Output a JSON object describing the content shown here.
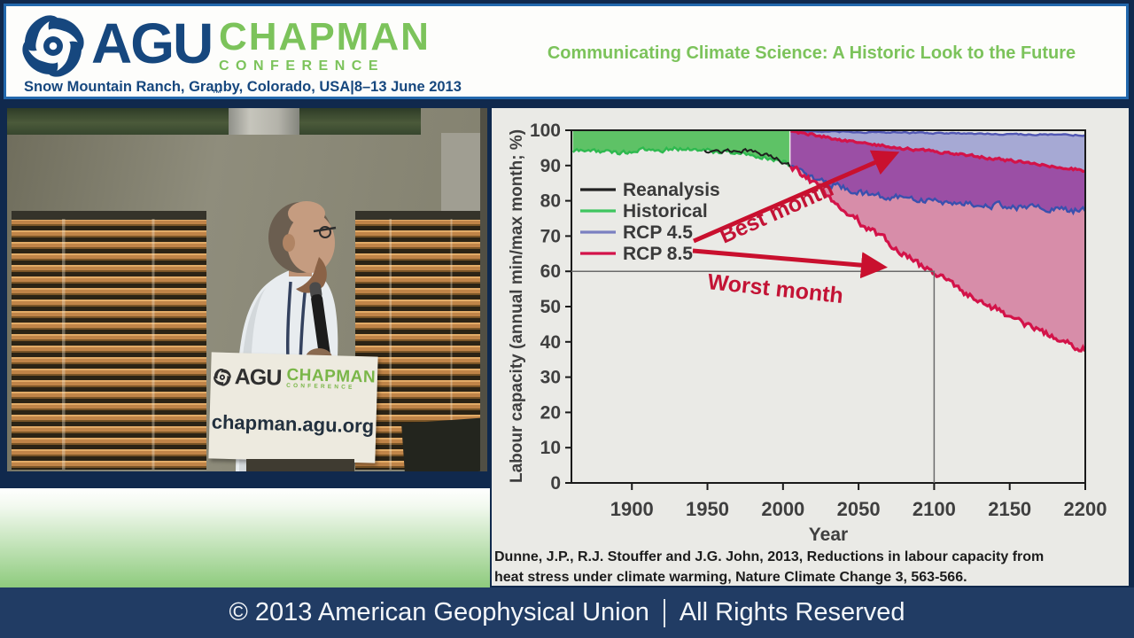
{
  "header": {
    "agu": "AGU",
    "tm": "™",
    "chapman": "CHAPMAN",
    "conference": "CONFERENCE",
    "location": "Snow Mountain Ranch, Granby, Colorado, USA|8–13 June 2013",
    "title": "Communicating Climate Science: A Historic Look to the Future"
  },
  "video": {
    "podium": {
      "agu": "AGU",
      "chapman": "CHAPMAN",
      "conference": "CONFERENCE",
      "url": "chapman.agu.org"
    }
  },
  "slide": {
    "citation_line1": "Dunne, J.P., R.J. Stouffer and J.G. John, 2013, Reductions in labour capacity from",
    "citation_line2": "heat stress under climate warming, Nature Climate Change 3, 563-566."
  },
  "footer": {
    "copyright": "© 2013 American Geophysical Union",
    "rights": "All Rights Reserved"
  },
  "chart_data": {
    "type": "area",
    "title": "",
    "xlabel": "Year",
    "ylabel": "Labour capacity (annual min/max month; %)",
    "xlim": [
      1860,
      2200
    ],
    "ylim": [
      0,
      100
    ],
    "x_ticks": [
      1900,
      1950,
      2000,
      2050,
      2100,
      2150,
      2200
    ],
    "y_ticks": [
      0,
      10,
      20,
      30,
      40,
      50,
      60,
      70,
      80,
      90,
      100
    ],
    "grid": false,
    "legend_position": "upper-left-inside",
    "legend": [
      {
        "label": "Reanalysis",
        "color": "#222222"
      },
      {
        "label": "Historical",
        "color": "#3fc55f"
      },
      {
        "label": "RCP 4.5",
        "color": "#7b80c1"
      },
      {
        "label": "RCP 8.5",
        "color": "#d31349"
      }
    ],
    "series": [
      {
        "name": "historical-top",
        "color": "none",
        "width": 0,
        "amp": 0,
        "anchors": [
          [
            1861,
            100
          ],
          [
            2005,
            100
          ]
        ]
      },
      {
        "name": "historical",
        "color": "#2eb94f",
        "width": 2.4,
        "amp": 1.1,
        "anchors": [
          [
            1861,
            94
          ],
          [
            1875,
            94.3
          ],
          [
            1890,
            93.6
          ],
          [
            1905,
            94.2
          ],
          [
            1920,
            94.5
          ],
          [
            1935,
            94.8
          ],
          [
            1950,
            94.2
          ],
          [
            1965,
            93.8
          ],
          [
            1980,
            93.2
          ],
          [
            1990,
            92.3
          ],
          [
            2000,
            91
          ],
          [
            2005,
            89.6
          ]
        ]
      },
      {
        "name": "reanalysis",
        "color": "#1e1e1e",
        "width": 2,
        "amp": 1.0,
        "anchors": [
          [
            1948,
            94.4
          ],
          [
            1960,
            94
          ],
          [
            1972,
            94.4
          ],
          [
            1984,
            93.4
          ],
          [
            1996,
            92.2
          ],
          [
            2005,
            89.8
          ]
        ]
      },
      {
        "name": "rcp45-best",
        "color": "#5157b3",
        "width": 2.4,
        "amp": 0.3,
        "anchors": [
          [
            2005,
            99.7
          ],
          [
            2100,
            99.2
          ],
          [
            2200,
            98.6
          ]
        ]
      },
      {
        "name": "rcp85-best",
        "color": "#d31349",
        "width": 3.2,
        "amp": 0.6,
        "anchors": [
          [
            2005,
            99.7
          ],
          [
            2020,
            98.8
          ],
          [
            2040,
            97.1
          ],
          [
            2060,
            95.9
          ],
          [
            2080,
            94.8
          ],
          [
            2100,
            94
          ],
          [
            2125,
            92.8
          ],
          [
            2150,
            91.4
          ],
          [
            2175,
            90
          ],
          [
            2200,
            88.5
          ]
        ]
      },
      {
        "name": "rcp45-worst",
        "color": "#3a50ae",
        "width": 2.4,
        "amp": 1.6,
        "anchors": [
          [
            2005,
            89.5
          ],
          [
            2015,
            87
          ],
          [
            2030,
            85
          ],
          [
            2050,
            82.5
          ],
          [
            2070,
            81
          ],
          [
            2100,
            80
          ],
          [
            2130,
            79
          ],
          [
            2160,
            78
          ],
          [
            2200,
            77
          ]
        ]
      },
      {
        "name": "rcp85-worst",
        "color": "#d31349",
        "width": 3.2,
        "amp": 1.6,
        "anchors": [
          [
            2005,
            89.5
          ],
          [
            2015,
            87
          ],
          [
            2030,
            81
          ],
          [
            2045,
            76
          ],
          [
            2060,
            71
          ],
          [
            2075,
            66.5
          ],
          [
            2090,
            62
          ],
          [
            2100,
            59.5
          ],
          [
            2120,
            54
          ],
          [
            2140,
            49.5
          ],
          [
            2160,
            45
          ],
          [
            2180,
            41
          ],
          [
            2200,
            38
          ]
        ]
      }
    ],
    "fills": [
      {
        "name": "historical-fill",
        "top": "historical-top",
        "bottom": "historical",
        "color": "#5ec266"
      },
      {
        "name": "rcp45-band",
        "top": "rcp45-best",
        "bottom": "rcp85-best",
        "color": "#a6a9d4"
      },
      {
        "name": "overlap-band",
        "top": "rcp85-best",
        "bottom": "rcp45-worst",
        "color": "#9b4fa5"
      },
      {
        "name": "rcp85-band",
        "top": "rcp45-worst",
        "bottom": "rcp85-worst",
        "color": "#d78da9"
      }
    ],
    "reference_box": {
      "year": 2100,
      "value": 60
    },
    "annotations": [
      {
        "text": "Best month",
        "color": "#c31335"
      },
      {
        "text": "Worst month",
        "color": "#c31335"
      }
    ]
  }
}
